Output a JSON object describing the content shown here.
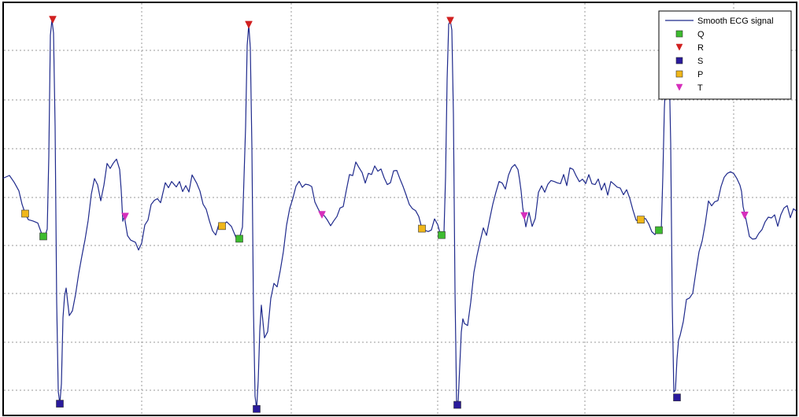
{
  "chart_data": {
    "type": "line",
    "title": "",
    "xlabel": "",
    "ylabel": "",
    "xlim": [
      0,
      1008
    ],
    "ylim": [
      -1,
      1
    ],
    "grid": true,
    "legend_position": "top-right",
    "series": [
      {
        "name": "Smooth ECG signal",
        "color": "#1f2a8c",
        "points": [
          [
            0,
            0.186
          ],
          [
            8,
            0.2
          ],
          [
            14,
            0.165
          ],
          [
            20,
            0.121
          ],
          [
            24,
            0.052
          ],
          [
            28,
            0.004
          ],
          [
            32,
            -0.027
          ],
          [
            38,
            -0.034
          ],
          [
            44,
            -0.044
          ],
          [
            50,
            -0.111
          ],
          [
            53,
            -0.114
          ],
          [
            56,
            -0.075
          ],
          [
            58,
            0.296
          ],
          [
            60,
            0.92
          ],
          [
            62,
            1.0
          ],
          [
            64,
            0.931
          ],
          [
            66,
            0.452
          ],
          [
            68,
            -0.45
          ],
          [
            70,
            -0.909
          ],
          [
            72,
            -0.972
          ],
          [
            74,
            -0.871
          ],
          [
            76,
            -0.531
          ],
          [
            78,
            -0.42
          ],
          [
            80,
            -0.378
          ],
          [
            82,
            -0.451
          ],
          [
            84,
            -0.52
          ],
          [
            88,
            -0.495
          ],
          [
            92,
            -0.411
          ],
          [
            96,
            -0.304
          ],
          [
            100,
            -0.214
          ],
          [
            104,
            -0.13
          ],
          [
            108,
            -0.031
          ],
          [
            112,
            0.104
          ],
          [
            116,
            0.184
          ],
          [
            120,
            0.152
          ],
          [
            124,
            0.07
          ],
          [
            128,
            0.15
          ],
          [
            132,
            0.262
          ],
          [
            136,
            0.236
          ],
          [
            140,
            0.264
          ],
          [
            144,
            0.284
          ],
          [
            148,
            0.231
          ],
          [
            150,
            0.123
          ],
          [
            152,
            -0.035
          ],
          [
            154,
            -0.011
          ],
          [
            158,
            -0.109
          ],
          [
            162,
            -0.132
          ],
          [
            168,
            -0.143
          ],
          [
            172,
            -0.183
          ],
          [
            176,
            -0.147
          ],
          [
            180,
            -0.054
          ],
          [
            184,
            -0.029
          ],
          [
            188,
            0.051
          ],
          [
            192,
            0.072
          ],
          [
            196,
            0.081
          ],
          [
            200,
            0.06
          ],
          [
            206,
            0.163
          ],
          [
            210,
            0.137
          ],
          [
            214,
            0.169
          ],
          [
            220,
            0.141
          ],
          [
            224,
            0.169
          ],
          [
            228,
            0.117
          ],
          [
            232,
            0.148
          ],
          [
            236,
            0.115
          ],
          [
            240,
            0.203
          ],
          [
            246,
            0.159
          ],
          [
            250,
            0.12
          ],
          [
            254,
            0.052
          ],
          [
            258,
            0.026
          ],
          [
            262,
            -0.033
          ],
          [
            266,
            -0.084
          ],
          [
            270,
            -0.106
          ],
          [
            274,
            -0.051
          ],
          [
            278,
            -0.06
          ],
          [
            284,
            -0.038
          ],
          [
            290,
            -0.062
          ],
          [
            296,
            -0.121
          ],
          [
            300,
            -0.125
          ],
          [
            304,
            -0.065
          ],
          [
            308,
            0.45
          ],
          [
            310,
            0.869
          ],
          [
            312,
            0.974
          ],
          [
            314,
            0.854
          ],
          [
            316,
            0.344
          ],
          [
            318,
            -0.49
          ],
          [
            320,
            -0.933
          ],
          [
            322,
            -0.999
          ],
          [
            324,
            -0.855
          ],
          [
            326,
            -0.599
          ],
          [
            328,
            -0.466
          ],
          [
            332,
            -0.634
          ],
          [
            336,
            -0.603
          ],
          [
            340,
            -0.431
          ],
          [
            344,
            -0.354
          ],
          [
            348,
            -0.372
          ],
          [
            352,
            -0.289
          ],
          [
            356,
            -0.191
          ],
          [
            360,
            -0.056
          ],
          [
            364,
            0.03
          ],
          [
            368,
            0.082
          ],
          [
            372,
            0.145
          ],
          [
            376,
            0.17
          ],
          [
            380,
            0.139
          ],
          [
            384,
            0.155
          ],
          [
            388,
            0.152
          ],
          [
            392,
            0.143
          ],
          [
            396,
            0.064
          ],
          [
            400,
            0.03
          ],
          [
            404,
            0.0
          ],
          [
            408,
            -0.007
          ],
          [
            412,
            -0.03
          ],
          [
            416,
            -0.058
          ],
          [
            420,
            -0.033
          ],
          [
            424,
            -0.011
          ],
          [
            428,
            0.033
          ],
          [
            432,
            0.04
          ],
          [
            436,
            0.125
          ],
          [
            440,
            0.205
          ],
          [
            444,
            0.199
          ],
          [
            448,
            0.269
          ],
          [
            452,
            0.241
          ],
          [
            456,
            0.215
          ],
          [
            460,
            0.161
          ],
          [
            464,
            0.211
          ],
          [
            468,
            0.205
          ],
          [
            472,
            0.249
          ],
          [
            476,
            0.222
          ],
          [
            480,
            0.233
          ],
          [
            484,
            0.188
          ],
          [
            488,
            0.153
          ],
          [
            492,
            0.163
          ],
          [
            496,
            0.224
          ],
          [
            500,
            0.226
          ],
          [
            504,
            0.183
          ],
          [
            508,
            0.144
          ],
          [
            512,
            0.099
          ],
          [
            516,
            0.051
          ],
          [
            520,
            0.029
          ],
          [
            524,
            0.019
          ],
          [
            528,
            -0.011
          ],
          [
            532,
            -0.073
          ],
          [
            536,
            -0.082
          ],
          [
            540,
            -0.088
          ],
          [
            544,
            -0.08
          ],
          [
            548,
            -0.023
          ],
          [
            552,
            -0.052
          ],
          [
            556,
            -0.109
          ],
          [
            560,
            -0.095
          ],
          [
            562,
            0.191
          ],
          [
            564,
            0.695
          ],
          [
            566,
            0.977
          ],
          [
            568,
            0.995
          ],
          [
            570,
            0.947
          ],
          [
            572,
            0.514
          ],
          [
            574,
            -0.391
          ],
          [
            576,
            -0.956
          ],
          [
            578,
            -0.965
          ],
          [
            580,
            -0.782
          ],
          [
            582,
            -0.604
          ],
          [
            584,
            -0.536
          ],
          [
            586,
            -0.561
          ],
          [
            590,
            -0.571
          ],
          [
            594,
            -0.451
          ],
          [
            598,
            -0.298
          ],
          [
            602,
            -0.211
          ],
          [
            606,
            -0.137
          ],
          [
            610,
            -0.069
          ],
          [
            614,
            -0.108
          ],
          [
            618,
            -0.026
          ],
          [
            622,
            0.052
          ],
          [
            626,
            0.114
          ],
          [
            630,
            0.169
          ],
          [
            634,
            0.161
          ],
          [
            638,
            0.13
          ],
          [
            642,
            0.202
          ],
          [
            646,
            0.241
          ],
          [
            650,
            0.256
          ],
          [
            654,
            0.23
          ],
          [
            656,
            0.18
          ],
          [
            658,
            0.12
          ],
          [
            660,
            0.036
          ],
          [
            664,
            -0.064
          ],
          [
            668,
            0.011
          ],
          [
            672,
            -0.062
          ],
          [
            676,
            -0.02
          ],
          [
            680,
            0.113
          ],
          [
            684,
            0.147
          ],
          [
            688,
            0.114
          ],
          [
            692,
            0.155
          ],
          [
            696,
            0.174
          ],
          [
            700,
            0.169
          ],
          [
            704,
            0.162
          ],
          [
            708,
            0.158
          ],
          [
            712,
            0.205
          ],
          [
            716,
            0.148
          ],
          [
            720,
            0.239
          ],
          [
            724,
            0.231
          ],
          [
            728,
            0.197
          ],
          [
            732,
            0.168
          ],
          [
            736,
            0.181
          ],
          [
            740,
            0.158
          ],
          [
            744,
            0.204
          ],
          [
            748,
            0.157
          ],
          [
            752,
            0.153
          ],
          [
            756,
            0.182
          ],
          [
            760,
            0.125
          ],
          [
            764,
            0.161
          ],
          [
            768,
            0.099
          ],
          [
            772,
            0.169
          ],
          [
            776,
            0.155
          ],
          [
            780,
            0.14
          ],
          [
            784,
            0.135
          ],
          [
            788,
            0.101
          ],
          [
            792,
            0.127
          ],
          [
            796,
            0.083
          ],
          [
            800,
            0.023
          ],
          [
            804,
            -0.029
          ],
          [
            808,
            -0.037
          ],
          [
            812,
            -0.025
          ],
          [
            816,
            -0.021
          ],
          [
            820,
            -0.048
          ],
          [
            824,
            -0.089
          ],
          [
            828,
            -0.104
          ],
          [
            832,
            -0.076
          ],
          [
            836,
            -0.085
          ],
          [
            838,
            0.193
          ],
          [
            840,
            0.546
          ],
          [
            842,
            0.729
          ],
          [
            844,
            0.82
          ],
          [
            846,
            0.785
          ],
          [
            848,
            0.364
          ],
          [
            850,
            -0.466
          ],
          [
            852,
            -0.912
          ],
          [
            854,
            -0.903
          ],
          [
            856,
            -0.743
          ],
          [
            858,
            -0.646
          ],
          [
            860,
            -0.621
          ],
          [
            864,
            -0.551
          ],
          [
            868,
            -0.437
          ],
          [
            872,
            -0.429
          ],
          [
            876,
            -0.405
          ],
          [
            880,
            -0.296
          ],
          [
            884,
            -0.192
          ],
          [
            888,
            -0.136
          ],
          [
            892,
            -0.045
          ],
          [
            896,
            0.069
          ],
          [
            900,
            0.044
          ],
          [
            904,
            0.065
          ],
          [
            908,
            0.071
          ],
          [
            912,
            0.144
          ],
          [
            916,
            0.191
          ],
          [
            920,
            0.211
          ],
          [
            924,
            0.219
          ],
          [
            928,
            0.21
          ],
          [
            932,
            0.185
          ],
          [
            936,
            0.15
          ],
          [
            938,
            0.118
          ],
          [
            940,
            0.039
          ],
          [
            944,
            -0.032
          ],
          [
            948,
            -0.113
          ],
          [
            952,
            -0.127
          ],
          [
            956,
            -0.125
          ],
          [
            960,
            -0.097
          ],
          [
            964,
            -0.078
          ],
          [
            968,
            -0.038
          ],
          [
            972,
            -0.014
          ],
          [
            976,
            -0.018
          ],
          [
            980,
            -0.002
          ],
          [
            984,
            -0.061
          ],
          [
            988,
            -0.001
          ],
          [
            992,
            0.033
          ],
          [
            996,
            0.045
          ],
          [
            1000,
            -0.017
          ],
          [
            1004,
            0.029
          ],
          [
            1008,
            0.016
          ]
        ]
      },
      {
        "name": "Q",
        "marker": "square",
        "color": "#3dbb2f",
        "points": [
          [
            51,
            -0.113
          ],
          [
            300,
            -0.125
          ],
          [
            557,
            -0.106
          ],
          [
            833,
            -0.081
          ]
        ]
      },
      {
        "name": "R",
        "marker": "triangle-down",
        "color": "#d12020",
        "points": [
          [
            63,
            1.0
          ],
          [
            312,
            0.974
          ],
          [
            568,
            0.995
          ],
          [
            845,
            0.83
          ]
        ]
      },
      {
        "name": "S",
        "marker": "square",
        "color": "#2a1a9c",
        "points": [
          [
            72,
            -0.972
          ],
          [
            322,
            -0.999
          ],
          [
            577,
            -0.978
          ],
          [
            856,
            -0.94
          ]
        ]
      },
      {
        "name": "P",
        "marker": "square",
        "color": "#f0b71a",
        "points": [
          [
            28,
            0.004
          ],
          [
            278,
            -0.06
          ],
          [
            532,
            -0.073
          ],
          [
            810,
            -0.027
          ]
        ]
      },
      {
        "name": "T",
        "marker": "triangle-down",
        "color": "#d62fbc",
        "points": [
          [
            155,
            -0.011
          ],
          [
            405,
            -0.002
          ],
          [
            662,
            -0.008
          ],
          [
            942,
            -0.005
          ]
        ]
      }
    ]
  }
}
